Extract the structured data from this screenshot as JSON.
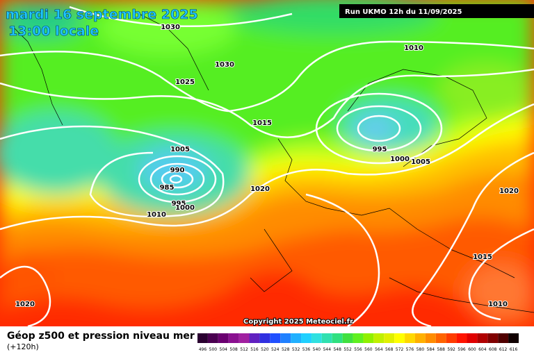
{
  "header": {
    "date": "mardi 16 septembre 2025",
    "time": "13:00 locale",
    "run": "Run UKMO 12h du 11/09/2025"
  },
  "isobar_labels": [
    "1030",
    "1030",
    "1025",
    "1010",
    "1015",
    "1005",
    "990",
    "985",
    "995",
    "1000",
    "1010",
    "1020",
    "995",
    "1000",
    "1005",
    "1020",
    "1015",
    "1010",
    "1020"
  ],
  "footer": {
    "title": "Géop z500 et pression niveau mer",
    "lead": "(+120h)",
    "copyright": "Copyright 2025 Meteociel.fr"
  },
  "legend": {
    "labels": [
      "496",
      "500",
      "504",
      "508",
      "512",
      "516",
      "520",
      "524",
      "528",
      "532",
      "536",
      "540",
      "544",
      "548",
      "552",
      "556",
      "560",
      "564",
      "568",
      "572",
      "576",
      "580",
      "584",
      "588",
      "592",
      "596",
      "600",
      "604",
      "608",
      "612",
      "616"
    ]
  }
}
